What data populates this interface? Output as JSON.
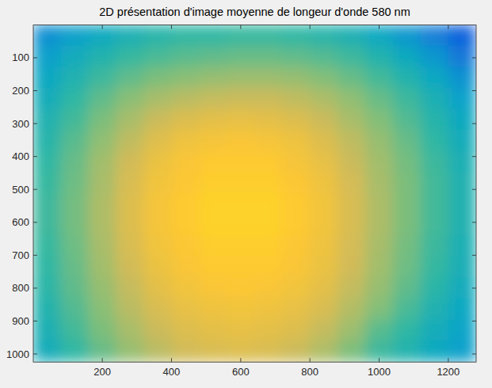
{
  "chart_data": {
    "type": "heatmap",
    "title": "2D présentation d'image moyenne de longeur d'onde 580 nm",
    "x": [
      40,
      120,
      200,
      280,
      360,
      440,
      520,
      600,
      680,
      760,
      840,
      920,
      1000,
      1080,
      1160,
      1240
    ],
    "y": [
      32,
      96,
      160,
      224,
      288,
      352,
      416,
      480,
      544,
      608,
      672,
      736,
      800,
      864,
      928,
      992
    ],
    "cells": [
      [
        0.3,
        0.36,
        0.41,
        0.45,
        0.48,
        0.5,
        0.5,
        0.51,
        0.51,
        0.5,
        0.48,
        0.45,
        0.4,
        0.33,
        0.24,
        0.14
      ],
      [
        0.36,
        0.42,
        0.47,
        0.51,
        0.54,
        0.56,
        0.57,
        0.58,
        0.58,
        0.57,
        0.55,
        0.52,
        0.47,
        0.41,
        0.33,
        0.22
      ],
      [
        0.4,
        0.46,
        0.52,
        0.57,
        0.61,
        0.63,
        0.65,
        0.66,
        0.66,
        0.65,
        0.62,
        0.58,
        0.53,
        0.47,
        0.4,
        0.31
      ],
      [
        0.43,
        0.5,
        0.57,
        0.63,
        0.68,
        0.71,
        0.73,
        0.74,
        0.74,
        0.72,
        0.69,
        0.64,
        0.58,
        0.52,
        0.45,
        0.37
      ],
      [
        0.46,
        0.53,
        0.61,
        0.68,
        0.74,
        0.78,
        0.8,
        0.81,
        0.8,
        0.78,
        0.74,
        0.68,
        0.62,
        0.55,
        0.48,
        0.41
      ],
      [
        0.48,
        0.56,
        0.64,
        0.72,
        0.79,
        0.83,
        0.85,
        0.86,
        0.85,
        0.83,
        0.78,
        0.72,
        0.65,
        0.58,
        0.5,
        0.43
      ],
      [
        0.5,
        0.58,
        0.67,
        0.75,
        0.82,
        0.86,
        0.88,
        0.88,
        0.88,
        0.85,
        0.81,
        0.74,
        0.67,
        0.6,
        0.52,
        0.45
      ],
      [
        0.51,
        0.59,
        0.68,
        0.77,
        0.84,
        0.87,
        0.89,
        0.89,
        0.89,
        0.87,
        0.83,
        0.76,
        0.68,
        0.61,
        0.53,
        0.46
      ],
      [
        0.52,
        0.6,
        0.69,
        0.78,
        0.85,
        0.88,
        0.9,
        0.9,
        0.9,
        0.88,
        0.84,
        0.77,
        0.69,
        0.61,
        0.53,
        0.46
      ],
      [
        0.52,
        0.6,
        0.69,
        0.78,
        0.85,
        0.88,
        0.9,
        0.9,
        0.9,
        0.88,
        0.84,
        0.77,
        0.69,
        0.61,
        0.53,
        0.46
      ],
      [
        0.51,
        0.59,
        0.68,
        0.77,
        0.84,
        0.87,
        0.89,
        0.89,
        0.89,
        0.87,
        0.83,
        0.76,
        0.68,
        0.6,
        0.52,
        0.45
      ],
      [
        0.5,
        0.58,
        0.67,
        0.75,
        0.82,
        0.86,
        0.88,
        0.88,
        0.88,
        0.86,
        0.82,
        0.75,
        0.67,
        0.59,
        0.51,
        0.44
      ],
      [
        0.49,
        0.57,
        0.65,
        0.73,
        0.8,
        0.84,
        0.86,
        0.87,
        0.86,
        0.84,
        0.8,
        0.73,
        0.65,
        0.57,
        0.49,
        0.42
      ],
      [
        0.47,
        0.55,
        0.63,
        0.71,
        0.77,
        0.81,
        0.83,
        0.84,
        0.83,
        0.81,
        0.77,
        0.7,
        0.62,
        0.54,
        0.46,
        0.4
      ],
      [
        0.45,
        0.53,
        0.61,
        0.68,
        0.74,
        0.78,
        0.8,
        0.81,
        0.8,
        0.78,
        0.73,
        0.66,
        0.56,
        0.5,
        0.43,
        0.38
      ],
      [
        0.43,
        0.5,
        0.58,
        0.65,
        0.71,
        0.75,
        0.77,
        0.78,
        0.77,
        0.74,
        0.69,
        0.61,
        0.52,
        0.47,
        0.41,
        0.36
      ]
    ],
    "xlim": [
      0.5,
      1280.5
    ],
    "ylim": [
      1024.5,
      0.5
    ],
    "xticks": [
      200,
      400,
      600,
      800,
      1000,
      1200
    ],
    "yticks": [
      100,
      200,
      300,
      400,
      500,
      600,
      700,
      800,
      900,
      1000
    ],
    "zlim": [
      0,
      1
    ]
  }
}
